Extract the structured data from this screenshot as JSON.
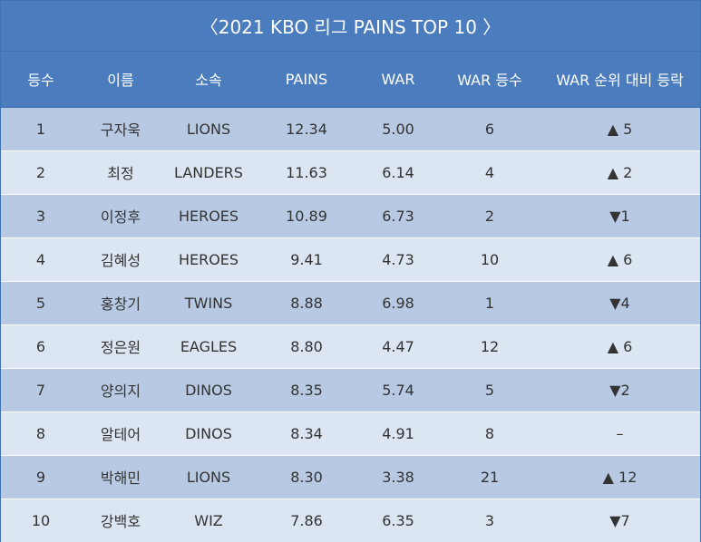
{
  "title": "〈2021 KBO 리그 PAINS TOP 10 〉",
  "chart_data": {
    "type": "table",
    "title": "〈2021 KBO 리그 PAINS TOP 10 〉",
    "columns": [
      "등수",
      "이름",
      "소속",
      "PAINS",
      "WAR",
      "WAR 등수",
      "WAR 순위 대비 등락"
    ],
    "rows": [
      [
        "1",
        "구자욱",
        "LIONS",
        "12.34",
        "5.00",
        "6",
        "▲ 5"
      ],
      [
        "2",
        "최정",
        "LANDERS",
        "11.63",
        "6.14",
        "4",
        "▲ 2"
      ],
      [
        "3",
        "이정후",
        "HEROES",
        "10.89",
        "6.73",
        "2",
        "▼1"
      ],
      [
        "4",
        "김혜성",
        "HEROES",
        "9.41",
        "4.73",
        "10",
        "▲ 6"
      ],
      [
        "5",
        "홍창기",
        "TWINS",
        "8.88",
        "6.98",
        "1",
        "▼4"
      ],
      [
        "6",
        "정은원",
        "EAGLES",
        "8.80",
        "4.47",
        "12",
        "▲ 6"
      ],
      [
        "7",
        "양의지",
        "DINOS",
        "8.35",
        "5.74",
        "5",
        "▼2"
      ],
      [
        "8",
        "알테어",
        "DINOS",
        "8.34",
        "4.91",
        "8",
        "–"
      ],
      [
        "9",
        "박해민",
        "LIONS",
        "8.30",
        "3.38",
        "21",
        "▲ 12"
      ],
      [
        "10",
        "강백호",
        "WIZ",
        "7.86",
        "6.35",
        "3",
        "▼7"
      ]
    ]
  },
  "colors": {
    "header": "#4a7cbe",
    "row_odd": "#b7c9e3",
    "row_even": "#dce5f2",
    "text": "#333333"
  }
}
